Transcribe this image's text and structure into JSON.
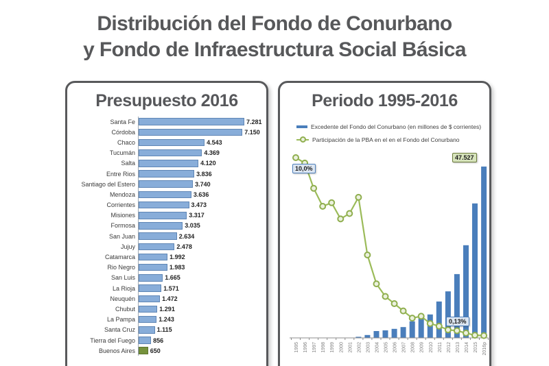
{
  "page": {
    "title_line1": "Distribución del Fondo de Conurbano",
    "title_line2": "y Fondo de Infraestructura Social Básica"
  },
  "colors": {
    "left_bar": "#88add9",
    "left_bar_highlight": "#76923c",
    "right_bar": "#4a7ebb",
    "line": "#9bbb59",
    "marker_fill": "#ebf1de",
    "axis": "#8c8c8c",
    "tick_label": "#7f7f7f"
  },
  "chart_data": [
    {
      "type": "bar",
      "orientation": "horizontal",
      "title": "Presupuesto 2016",
      "categories": [
        "Santa Fe",
        "Córdoba",
        "Chaco",
        "Tucumán",
        "Salta",
        "Entre Rios",
        "Santiago del Estero",
        "Mendoza",
        "Corrientes",
        "Misiones",
        "Formosa",
        "San Juan",
        "Jujuy",
        "Catamarca",
        "Rio Negro",
        "San Luis",
        "La Rioja",
        "Neuquén",
        "Chubut",
        "La Pampa",
        "Santa Cruz",
        "Tierra del Fuego",
        "Buenos Aires"
      ],
      "values": [
        7281,
        7150,
        4543,
        4369,
        4120,
        3836,
        3740,
        3636,
        3473,
        3317,
        3035,
        2634,
        2478,
        1992,
        1983,
        1665,
        1571,
        1472,
        1291,
        1243,
        1115,
        856,
        650
      ],
      "labels": [
        "7.281",
        "7.150",
        "4.543",
        "4.369",
        "4.120",
        "3.836",
        "3.740",
        "3.636",
        "3.473",
        "3.317",
        "3.035",
        "2.634",
        "2.478",
        "1.992",
        "1.983",
        "1.665",
        "1.571",
        "1.472",
        "1.291",
        "1.243",
        "1.115",
        "856",
        "650"
      ],
      "highlight_category": "Buenos Aires",
      "xlim": [
        0,
        7500
      ],
      "grid": false
    },
    {
      "type": "combo",
      "title": "Periodo 1995-2016",
      "categories": [
        "1995",
        "1996",
        "1997",
        "1998",
        "1999",
        "2000",
        "2001",
        "2002",
        "2003",
        "2004",
        "2005",
        "2006",
        "2007",
        "2008",
        "2009",
        "2010",
        "2011",
        "2012",
        "2013",
        "2014",
        "2015",
        "2016p"
      ],
      "series": [
        {
          "name": "Excedente del Fondo del Conurbano (en millones de $ corrientes)",
          "type": "bar",
          "color": "#4a7ebb",
          "values": [
            0,
            0,
            0,
            0,
            0,
            0,
            0,
            300,
            800,
            1900,
            2100,
            2500,
            3000,
            4600,
            5900,
            6500,
            10100,
            12900,
            17700,
            25700,
            37300,
            47527
          ]
        },
        {
          "name": "Participación de la PBA en el en el Fondo del Conurbano",
          "type": "line",
          "color": "#9bbb59",
          "values": [
            10.0,
            9.7,
            8.3,
            7.3,
            7.5,
            6.6,
            6.9,
            7.8,
            4.6,
            3.0,
            2.3,
            1.9,
            1.5,
            1.1,
            1.2,
            0.8,
            0.65,
            0.45,
            0.4,
            0.27,
            0.15,
            0.13
          ]
        }
      ],
      "annotations": [
        {
          "text": "10,0%",
          "target": "1995 línea",
          "variant": "blue"
        },
        {
          "text": "47.527",
          "target": "2016p barra",
          "variant": "green"
        },
        {
          "text": "0,13%",
          "target": "2016p línea",
          "variant": "blue"
        }
      ],
      "bar_ylim": [
        0,
        50000
      ],
      "line_ylim": [
        0,
        10.5
      ],
      "legend_position": "top-left",
      "grid": false
    }
  ]
}
